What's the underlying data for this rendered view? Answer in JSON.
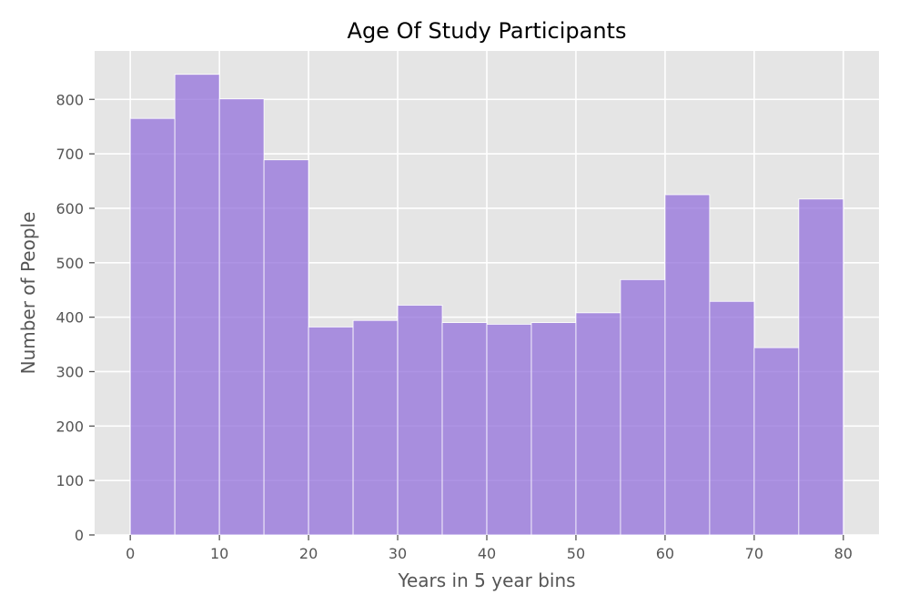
{
  "chart_data": {
    "type": "bar",
    "title": "Age Of Study Participants",
    "xlabel": "Years in 5 year bins",
    "ylabel": "Number of People",
    "bin_edges": [
      0,
      5,
      10,
      15,
      20,
      25,
      30,
      35,
      40,
      45,
      50,
      55,
      60,
      65,
      70,
      75,
      80
    ],
    "values": [
      765,
      846,
      801,
      689,
      382,
      394,
      422,
      390,
      387,
      390,
      408,
      469,
      625,
      429,
      344,
      617
    ],
    "xlim": [
      -4,
      84
    ],
    "ylim": [
      0,
      889
    ],
    "xticks": [
      0,
      10,
      20,
      30,
      40,
      50,
      60,
      70,
      80
    ],
    "yticks": [
      0,
      100,
      200,
      300,
      400,
      500,
      600,
      700,
      800
    ],
    "grid": true,
    "colors": {
      "bar": "#9370DB",
      "bar_edge": "#ffffff",
      "plot_background": "#E5E5E5",
      "grid": "#ffffff",
      "tick_text": "#555555",
      "title_text": "#000000"
    }
  }
}
